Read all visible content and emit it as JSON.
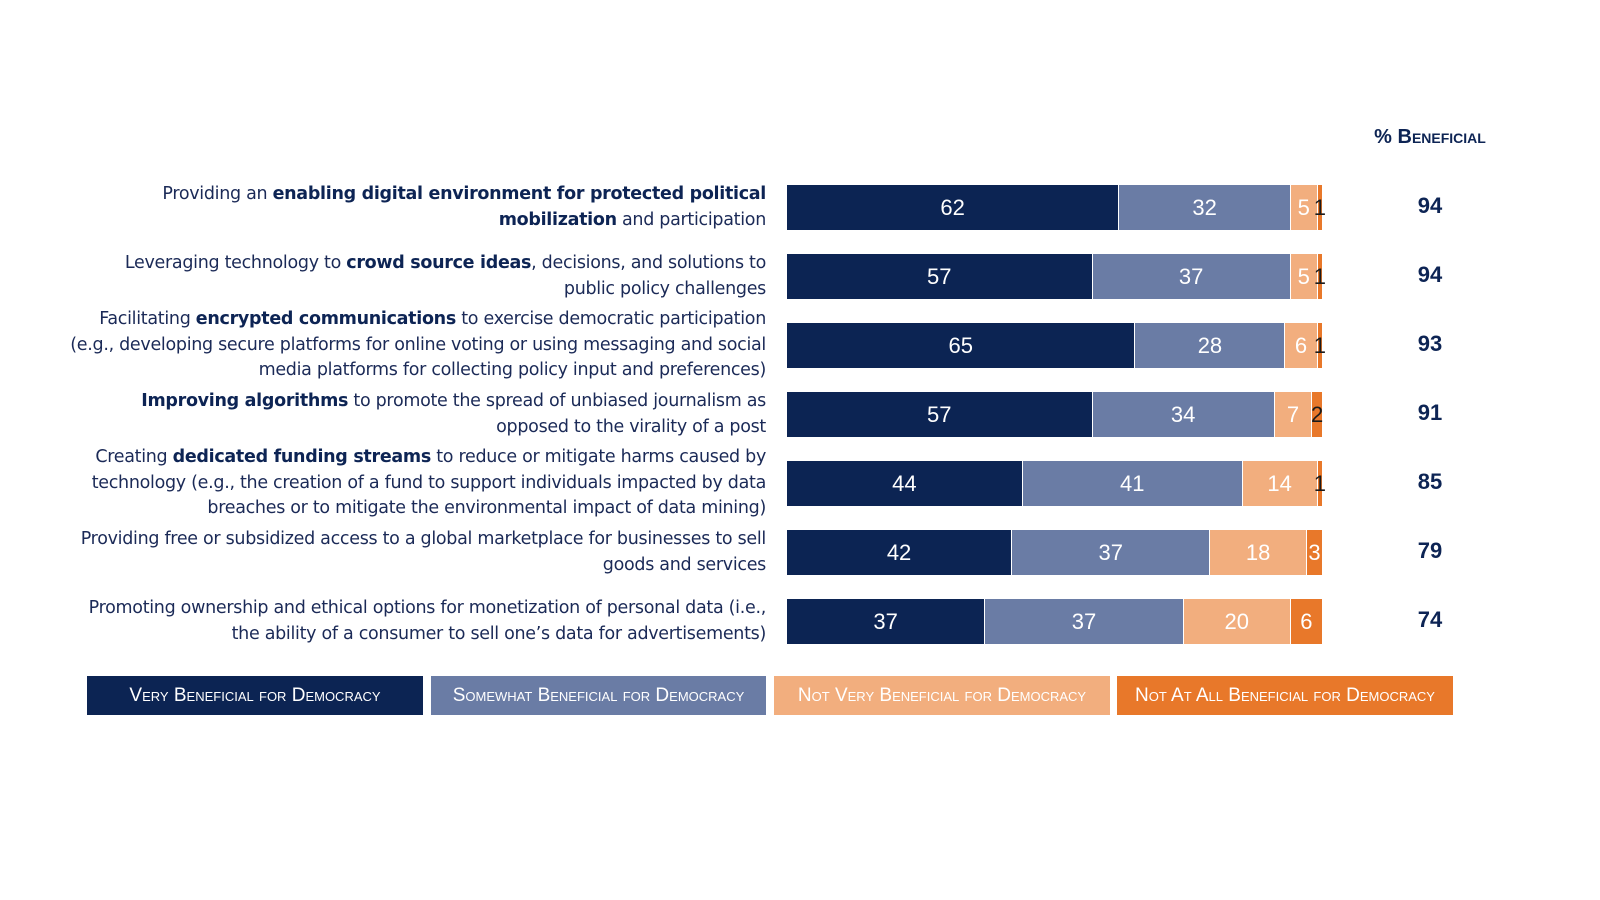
{
  "chart_data": {
    "type": "stacked-bar-horizontal",
    "categories": [
      [
        {
          "text": "Providing an "
        },
        {
          "text": "enabling digital environment for protected political mobilization",
          "bold": true
        },
        {
          "text": " and participation"
        }
      ],
      [
        {
          "text": "Leveraging technology to "
        },
        {
          "text": "crowd source ideas",
          "bold": true
        },
        {
          "text": ", decisions, and solutions to public policy challenges"
        }
      ],
      [
        {
          "text": "Facilitating "
        },
        {
          "text": "encrypted communications",
          "bold": true
        },
        {
          "text": " to exercise democratic participation (e.g., developing secure platforms for online voting or using messaging and social media platforms for collecting policy input and preferences)"
        }
      ],
      [
        {
          "text": "Improving algorithms",
          "bold": true
        },
        {
          "text": " to promote the spread of unbiased journalism as opposed to the virality of a post"
        }
      ],
      [
        {
          "text": "Creating "
        },
        {
          "text": "dedicated funding streams",
          "bold": true
        },
        {
          "text": " to reduce or mitigate harms caused by technology (e.g., the creation of a fund to support individuals impacted by data breaches or to mitigate the environmental impact of data mining)"
        }
      ],
      [
        {
          "text": "Providing free or subsidized access to a global marketplace for businesses to sell goods and services"
        }
      ],
      [
        {
          "text": "Promoting ownership and ethical options for monetization of personal data (i.e., the ability of a consumer to sell one’s data for advertisements)"
        }
      ]
    ],
    "series": [
      {
        "name": "Very Beneficial for Democracy",
        "color": "#0c2453",
        "values": [
          62,
          57,
          65,
          57,
          44,
          42,
          37
        ]
      },
      {
        "name": "Somewhat Beneficial for Democracy",
        "color": "#6a7ca5",
        "values": [
          32,
          37,
          28,
          34,
          41,
          37,
          37
        ]
      },
      {
        "name": "Not Very Beneficial for Democracy",
        "color": "#f2ae7e",
        "values": [
          5,
          5,
          6,
          7,
          14,
          18,
          20
        ]
      },
      {
        "name": "Not At All Beneficial for Democracy",
        "color": "#e8782a",
        "values": [
          1,
          1,
          1,
          2,
          1,
          3,
          6
        ]
      }
    ],
    "xlim": [
      0,
      100
    ],
    "beneficial": {
      "label": "% Beneficial",
      "values": [
        94,
        94,
        93,
        91,
        85,
        79,
        74
      ]
    }
  }
}
